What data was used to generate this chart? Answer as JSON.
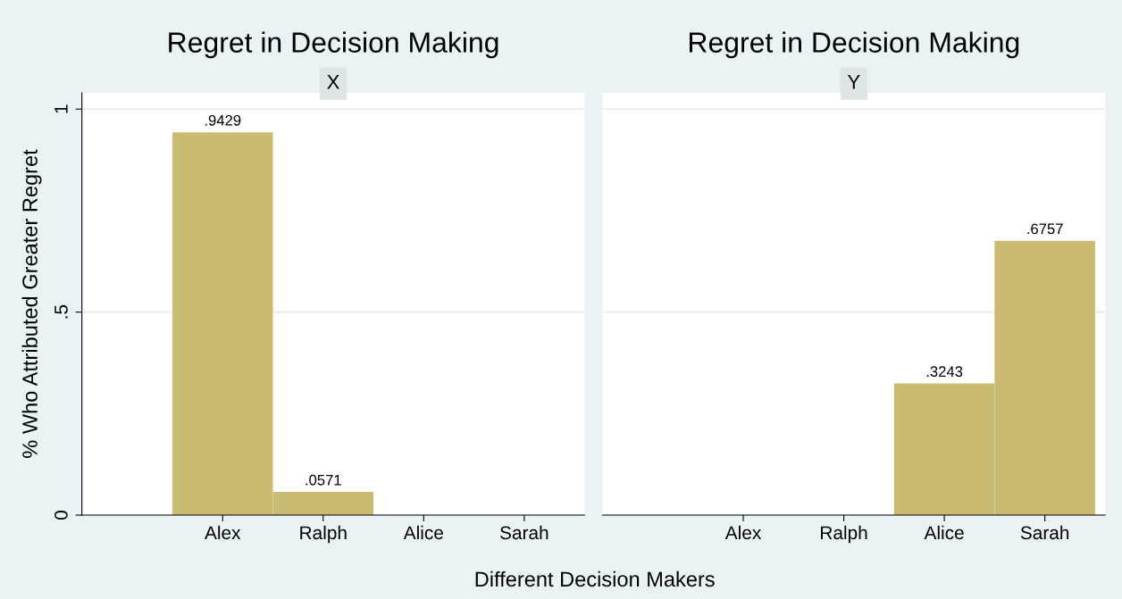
{
  "chart_data": [
    {
      "type": "bar",
      "title": "Regret in Decision Making",
      "subtitle": "X",
      "ylabel": "% Who Attributed Greater Regret",
      "xlabel": "Different Decision Makers",
      "categories": [
        "Alex",
        "Ralph",
        "Alice",
        "Sarah"
      ],
      "values": [
        0.9429,
        0.0571,
        0,
        0
      ],
      "value_labels": [
        ".9429",
        ".0571",
        null,
        null
      ],
      "color": "#c9bc72",
      "ylim": [
        0,
        1.04
      ],
      "yticks": [
        {
          "value": 0,
          "label": "0"
        },
        {
          "value": 0.5,
          "label": ".5"
        },
        {
          "value": 1,
          "label": "1"
        }
      ],
      "grid": "y",
      "legend": false
    },
    {
      "type": "bar",
      "title": "Regret in Decision Making",
      "subtitle": "Y",
      "categories": [
        "Alex",
        "Ralph",
        "Alice",
        "Sarah"
      ],
      "values": [
        0,
        0,
        0.3243,
        0.6757
      ],
      "value_labels": [
        null,
        null,
        ".3243",
        ".6757"
      ],
      "color": "#c9bc72",
      "ylim": [
        0,
        1.04
      ],
      "grid": "y",
      "legend": false,
      "tick_labels": "x"
    }
  ]
}
